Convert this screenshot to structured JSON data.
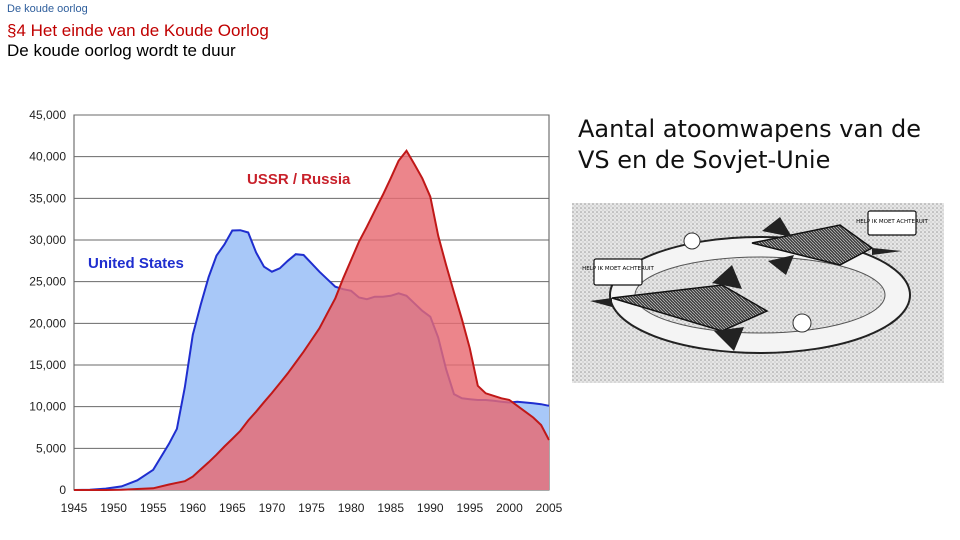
{
  "header": {
    "crumb": "De koude oorlog",
    "section_title": "§4 Het einde van de Koude Oorlog",
    "subtitle": "De koude oorlog wordt te duur"
  },
  "caption": "Aantal atoomwapens van de VS en de Sovjet-Unie",
  "chart_data": {
    "type": "area",
    "x": [
      1945,
      1947,
      1949,
      1951,
      1953,
      1955,
      1957,
      1958,
      1959,
      1960,
      1961,
      1962,
      1963,
      1964,
      1965,
      1966,
      1967,
      1968,
      1969,
      1970,
      1971,
      1972,
      1973,
      1974,
      1975,
      1976,
      1977,
      1978,
      1979,
      1980,
      1981,
      1982,
      1983,
      1984,
      1985,
      1986,
      1987,
      1988,
      1989,
      1990,
      1991,
      1992,
      1993,
      1994,
      1995,
      1996,
      1997,
      1998,
      1999,
      2000,
      2001,
      2002,
      2003,
      2004,
      2005
    ],
    "xlim": [
      1945,
      2005
    ],
    "ylim": [
      0,
      45000
    ],
    "xticks": [
      "1945",
      "1950",
      "1955",
      "1960",
      "1965",
      "1970",
      "1975",
      "1980",
      "1985",
      "1990",
      "1995",
      "2000",
      "2005"
    ],
    "yticks": [
      "0",
      "5,000",
      "10,000",
      "15,000",
      "20,000",
      "25,000",
      "30,000",
      "35,000",
      "40,000",
      "45,000"
    ],
    "series": [
      {
        "name": "United States",
        "color": "#a8c8f8",
        "line_color": "#1f2ecf",
        "values": [
          2,
          32,
          170,
          438,
          1169,
          2422,
          5543,
          7345,
          12298,
          18638,
          22229,
          25540,
          28133,
          29463,
          31139,
          31175,
          30900,
          28500,
          26800,
          26200,
          26600,
          27500,
          28300,
          28200,
          27200,
          26200,
          25300,
          24400,
          24100,
          23900,
          23100,
          22900,
          23200,
          23200,
          23300,
          23600,
          23300,
          22400,
          21500,
          20800,
          18300,
          14500,
          11500,
          11000,
          10900,
          10800,
          10800,
          10700,
          10600,
          10500,
          10600,
          10500,
          10400,
          10300,
          10100
        ]
      },
      {
        "name": "USSR / Russia",
        "color": "#e86a72",
        "line_color": "#c01818",
        "values": [
          0,
          0,
          1,
          25,
          120,
          200,
          660,
          869,
          1060,
          1605,
          2471,
          3322,
          4238,
          5221,
          6129,
          7089,
          8339,
          9399,
          10538,
          11643,
          12800,
          14000,
          15300,
          16600,
          18000,
          19400,
          21200,
          23000,
          25400,
          27600,
          29800,
          31600,
          33500,
          35400,
          37400,
          39500,
          40700,
          39100,
          37400,
          35200,
          30500,
          27000,
          23700,
          20500,
          17000,
          12500,
          11600,
          11300,
          11000,
          10800,
          10100,
          9400,
          8700,
          7800,
          6000
        ]
      }
    ]
  },
  "cartoon": {
    "label_left": "HELP IK MOET ACHTERUIT",
    "label_right": "HELP IK MOET ACHTERUIT"
  }
}
